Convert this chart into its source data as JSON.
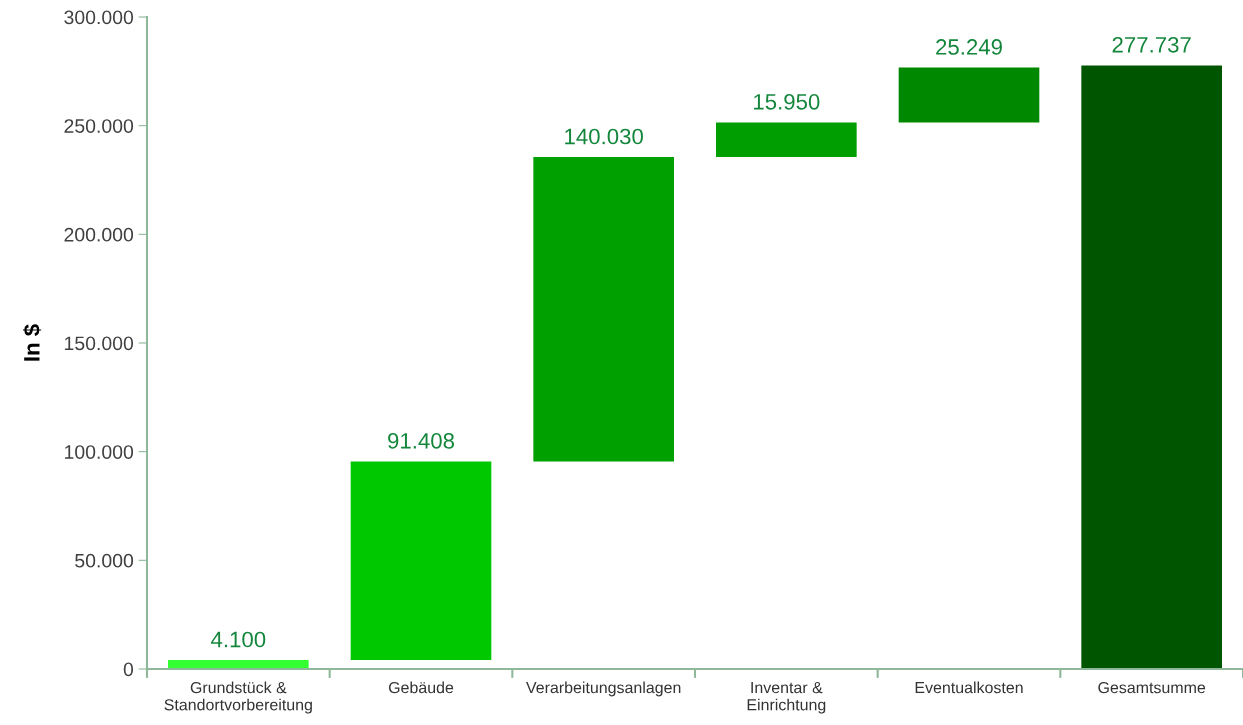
{
  "chart_data": {
    "type": "bar",
    "ylabel": "In $",
    "categories": [
      "Grundstück &\nStandortvorbereitung",
      "Gebäude",
      "Verarbeitungsanlagen",
      "Inventar &\nEinrichtung",
      "Eventualkosten",
      "Gesamtsumme"
    ],
    "values": [
      4100,
      91408,
      140030,
      15950,
      25249,
      277737
    ],
    "base": [
      0,
      4100,
      95508,
      235538,
      251488,
      0
    ],
    "colors": [
      "#33ff33",
      "#00c800",
      "#00a000",
      "#009e00",
      "#008800",
      "#005500"
    ],
    "value_labels": [
      "4.100",
      "91.408",
      "140.030",
      "15.950",
      "25.249",
      "277.737"
    ],
    "ylim": [
      0,
      300000
    ],
    "yticks": [
      0,
      {
        "value": 50000,
        "label": "50.000"
      },
      {
        "value": 100000,
        "label": "100.000"
      },
      {
        "value": 150000,
        "label": "150.000"
      },
      {
        "value": 200000,
        "label": "200.000"
      },
      {
        "value": 250000,
        "label": "250.000"
      },
      {
        "value": 300000,
        "label": "300.000"
      }
    ],
    "grid": false
  }
}
